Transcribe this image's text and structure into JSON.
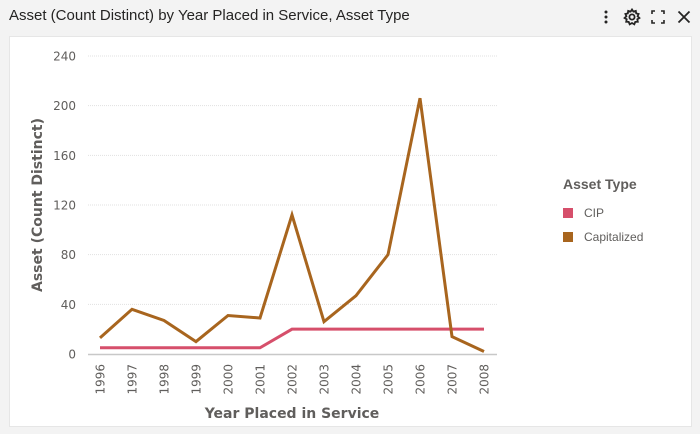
{
  "header": {
    "title": "Asset (Count Distinct) by Year Placed in Service, Asset Type",
    "icons": [
      "more-options-icon",
      "gear-icon",
      "focus-mode-icon",
      "close-icon"
    ]
  },
  "chart_data": {
    "type": "line",
    "title": "Asset (Count Distinct) by Year Placed in Service, Asset Type",
    "xlabel": "Year Placed in Service",
    "ylabel": "Asset (Count Distinct)",
    "categories": [
      "1996",
      "1997",
      "1998",
      "1999",
      "2000",
      "2001",
      "2002",
      "2003",
      "2004",
      "2005",
      "2006",
      "2007",
      "2008"
    ],
    "ylim": [
      0,
      240
    ],
    "yticks": [
      "0",
      "40",
      "80",
      "120",
      "160",
      "200",
      "240"
    ],
    "ytick_values": [
      0,
      40,
      80,
      120,
      160,
      200,
      240
    ],
    "grid": true,
    "legend": {
      "title": "Asset Type",
      "placement": "right"
    },
    "series": [
      {
        "name": "CIP",
        "color": "#d64f6b",
        "values": [
          5,
          5,
          5,
          5,
          5,
          5,
          20,
          20,
          20,
          20,
          20,
          20,
          20
        ]
      },
      {
        "name": "Capitalized",
        "color": "#a8651e",
        "values": [
          13,
          36,
          27,
          10,
          31,
          29,
          112,
          26,
          47,
          80,
          206,
          14,
          2
        ]
      }
    ]
  }
}
